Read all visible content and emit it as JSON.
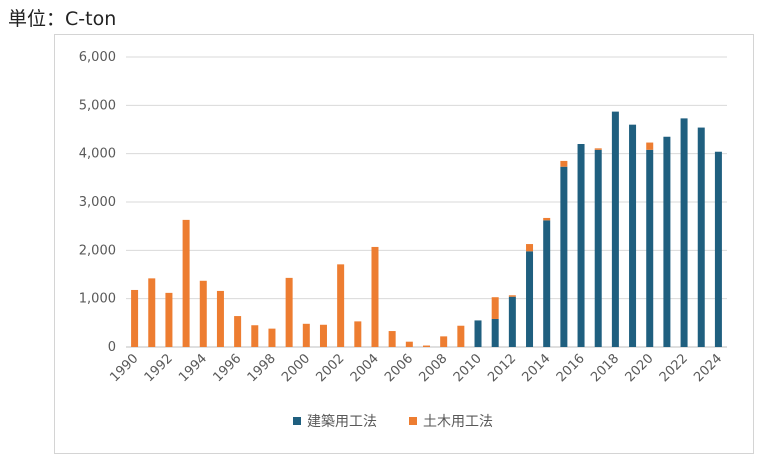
{
  "unit_label": "単位：C-ton",
  "colors": {
    "building": "#1f5f7f",
    "civil": "#ed7d31",
    "grid": "#d9d9d9",
    "tick": "#595959"
  },
  "chart_data": {
    "type": "bar",
    "stacked": true,
    "categories": [
      "1990",
      "1991",
      "1992",
      "1993",
      "1994",
      "1995",
      "1996",
      "1997",
      "1998",
      "1999",
      "2000",
      "2001",
      "2002",
      "2003",
      "2004",
      "2005",
      "2006",
      "2007",
      "2008",
      "2009",
      "2010",
      "2011",
      "2012",
      "2013",
      "2014",
      "2015",
      "2016",
      "2017",
      "2018",
      "2019",
      "2020",
      "2021",
      "2022",
      "2023",
      "2024"
    ],
    "x_tick_labels": [
      "1990",
      "1992",
      "1994",
      "1996",
      "1998",
      "2000",
      "2002",
      "2004",
      "2006",
      "2008",
      "2010",
      "2012",
      "2014",
      "2016",
      "2018",
      "2020",
      "2022",
      "2024"
    ],
    "series": [
      {
        "name": "建築用工法",
        "color": "#1f5f7f",
        "values": [
          0,
          0,
          0,
          0,
          0,
          0,
          0,
          0,
          0,
          0,
          0,
          0,
          0,
          0,
          0,
          0,
          0,
          0,
          0,
          0,
          550,
          580,
          1040,
          1980,
          2620,
          3730,
          4200,
          4080,
          4870,
          4600,
          4080,
          4350,
          4730,
          4540,
          4040
        ]
      },
      {
        "name": "土木用工法",
        "color": "#ed7d31",
        "values": [
          1180,
          1420,
          1120,
          2630,
          1370,
          1160,
          640,
          450,
          380,
          1430,
          480,
          460,
          1710,
          530,
          2070,
          330,
          110,
          30,
          220,
          440,
          0,
          450,
          30,
          150,
          50,
          120,
          0,
          30,
          0,
          0,
          150,
          0,
          0,
          0,
          0
        ]
      }
    ],
    "y_tick_labels": [
      "0",
      "1,000",
      "2,000",
      "3,000",
      "4,000",
      "5,000",
      "6,000"
    ],
    "ylim": [
      0,
      6000
    ],
    "grid": true,
    "legend_position": "bottom"
  }
}
